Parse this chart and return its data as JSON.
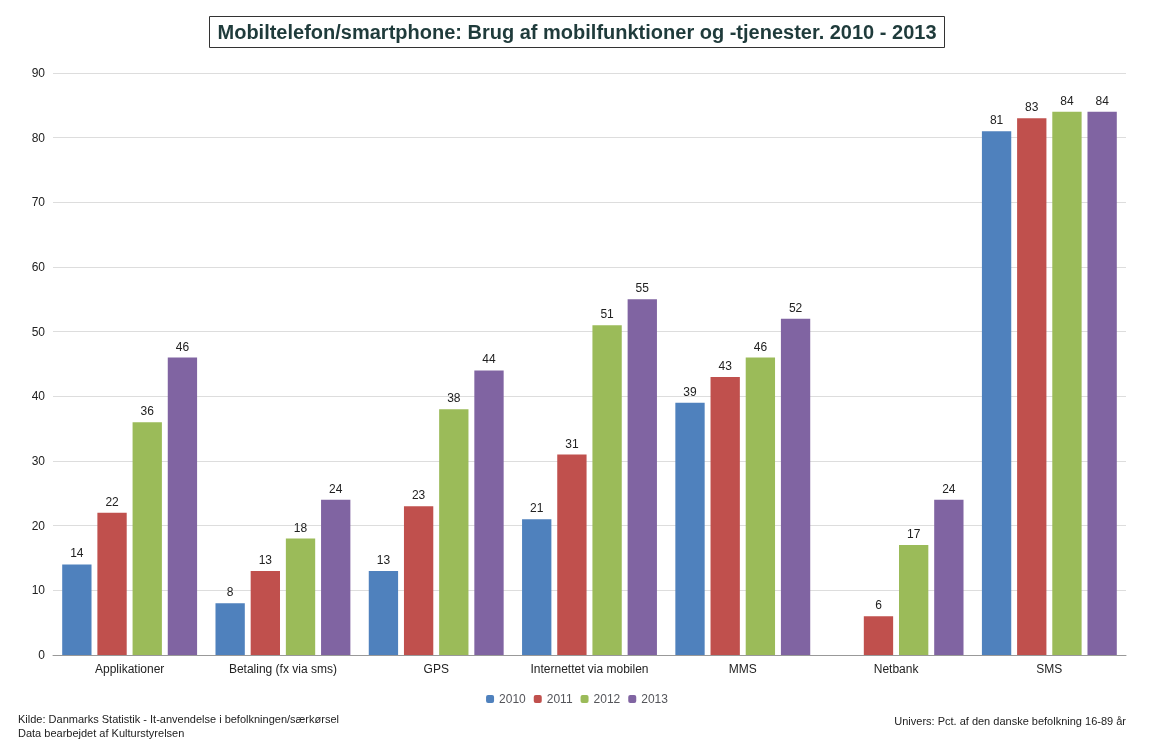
{
  "chart_data": {
    "type": "bar",
    "title": "Mobiltelefon/smartphone: Brug af mobilfunktioner og -tjenester. 2010 - 2013",
    "categories": [
      "Applikationer",
      "Betaling (fx via sms)",
      "GPS",
      "Internettet via mobilen",
      "MMS",
      "Netbank",
      "SMS"
    ],
    "series": [
      {
        "name": "2010",
        "color": "#4f81bd",
        "values": [
          14,
          8,
          13,
          21,
          39,
          null,
          81
        ]
      },
      {
        "name": "2011",
        "color": "#c0504d",
        "values": [
          22,
          13,
          23,
          31,
          43,
          6,
          83
        ]
      },
      {
        "name": "2012",
        "color": "#9bbb59",
        "values": [
          36,
          18,
          38,
          51,
          46,
          17,
          84
        ]
      },
      {
        "name": "2013",
        "color": "#8064a2",
        "values": [
          46,
          24,
          44,
          55,
          52,
          24,
          84
        ]
      }
    ],
    "ylim": [
      0,
      90
    ],
    "yticks": [
      0,
      10,
      20,
      30,
      40,
      50,
      60,
      70,
      80,
      90
    ],
    "grid": "y",
    "legend": "bottom",
    "data_labels": true,
    "annotations": [
      "Kilde: Danmarks Statistik - It-anvendelse i befolkningen/særkørsel",
      "Data bearbejdet af Kulturstyrelsen",
      "Univers: Pct. af den danske befolkning 16-89 år"
    ]
  }
}
